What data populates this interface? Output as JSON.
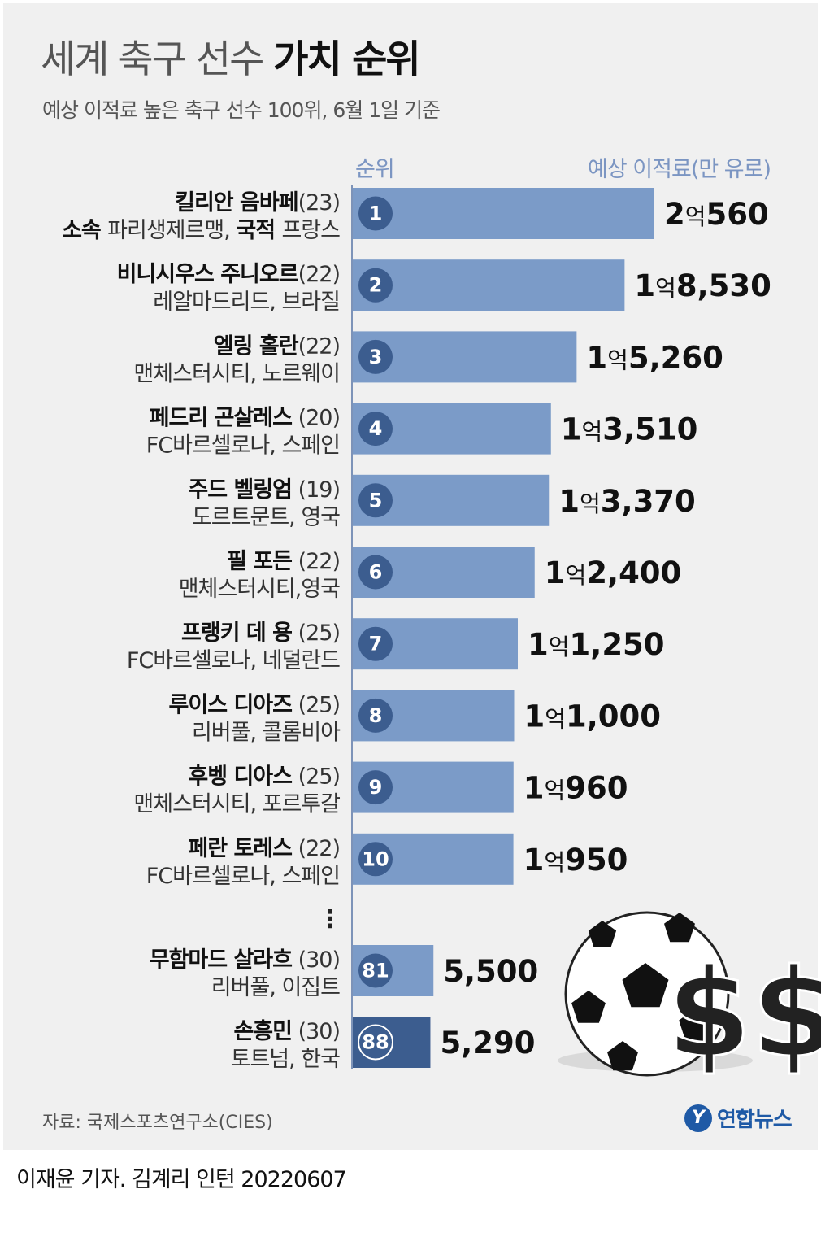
{
  "header": {
    "title_light": "세계 축구 선수",
    "title_bold": "가치 순위",
    "subtitle": "예상 이적료 높은 축구 선수 100위, 6월 1일 기준"
  },
  "columns": {
    "rank": "순위",
    "fee": "예상 이적료(만 유로)"
  },
  "ellipsis": "⋮",
  "chart_data": {
    "type": "bar",
    "orientation": "horizontal",
    "unit": "만 유로",
    "bars": [
      {
        "rank": "1",
        "name": "킬리안 음바페",
        "age": "(23)",
        "club_prefix": "소속",
        "club": "파리생제르맹,",
        "nat_prefix": "국적",
        "nation": "프랑스",
        "value": 20560,
        "label_eok": "2",
        "label_rest": "560"
      },
      {
        "rank": "2",
        "name": "비니시우스 주니오르",
        "age": "(22)",
        "club": "레알마드리드, 브라질",
        "value": 18530,
        "label_eok": "1",
        "label_rest": "8,530"
      },
      {
        "rank": "3",
        "name": "엘링 홀란",
        "age": "(22)",
        "club": "맨체스터시티, 노르웨이",
        "value": 15260,
        "label_eok": "1",
        "label_rest": "5,260"
      },
      {
        "rank": "4",
        "name": "페드리 곤살레스",
        "age": " (20)",
        "club": "FC바르셀로나, 스페인",
        "value": 13510,
        "label_eok": "1",
        "label_rest": "3,510"
      },
      {
        "rank": "5",
        "name": "주드 벨링엄",
        "age": " (19)",
        "club": "도르트문트, 영국",
        "value": 13370,
        "label_eok": "1",
        "label_rest": "3,370"
      },
      {
        "rank": "6",
        "name": "필 포든",
        "age": " (22)",
        "club": "맨체스터시티,영국",
        "value": 12400,
        "label_eok": "1",
        "label_rest": "2,400"
      },
      {
        "rank": "7",
        "name": "프랭키 데 용",
        "age": " (25)",
        "club": "FC바르셀로나, 네덜란드",
        "value": 11250,
        "label_eok": "1",
        "label_rest": "1,250"
      },
      {
        "rank": "8",
        "name": "루이스 디아즈",
        "age": " (25)",
        "club": "리버풀, 콜롬비아",
        "value": 11000,
        "label_eok": "1",
        "label_rest": "1,000"
      },
      {
        "rank": "9",
        "name": "후벵 디아스",
        "age": " (25)",
        "club": "맨체스터시티, 포르투갈",
        "value": 10960,
        "label_eok": "1",
        "label_rest": "960"
      },
      {
        "rank": "10",
        "name": "페란 토레스",
        "age": " (22)",
        "club": "FC바르셀로나, 스페인",
        "value": 10950,
        "label_eok": "1",
        "label_rest": "950"
      },
      {
        "rank": "81",
        "name": "무함마드 살라흐",
        "age": " (30)",
        "club": "리버풀, 이집트",
        "value": 5500,
        "label_rest": "5,500"
      },
      {
        "rank": "88",
        "name": "손흥민",
        "age": " (30)",
        "club": "토트넘, 한국",
        "value": 5290,
        "label_rest": "5,290",
        "highlight": true
      }
    ],
    "eok_unit": "억",
    "colors": {
      "bar": "#7b9bc8",
      "bar_highlight": "#3c5d8f",
      "rank_circle": "#3c5d8f",
      "value_highlight": "#4a6aa0"
    }
  },
  "footer": {
    "source": "자료: 국제스포츠연구소(CIES)",
    "logo_mark": "Y",
    "logo_text": "연합뉴스",
    "credit": "이재윤 기자. 김계리 인턴  20220607"
  },
  "decor": {
    "ball_icon": "soccer-ball-icon",
    "dollar_icon": "dollar-sign-icon",
    "dollar_glyph": "$$"
  }
}
